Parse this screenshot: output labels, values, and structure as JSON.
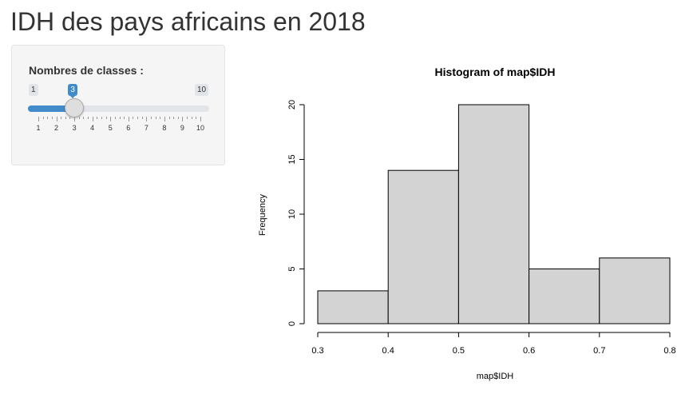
{
  "page": {
    "title": "IDH des pays africains en 2018"
  },
  "sidebar": {
    "slider": {
      "label": "Nombres de classes :",
      "min": 1,
      "max": 10,
      "value": 3,
      "min_label": "1",
      "max_label": "10",
      "value_label": "3",
      "grid_labels": [
        "1",
        "2",
        "3",
        "4",
        "5",
        "6",
        "7",
        "8",
        "9",
        "10"
      ],
      "accent_color": "#428bca"
    }
  },
  "chart_data": {
    "type": "bar",
    "title": "Histogram of map$IDH",
    "xlabel": "map$IDH",
    "ylabel": "Frequency",
    "bins": [
      [
        0.3,
        0.4
      ],
      [
        0.4,
        0.5
      ],
      [
        0.5,
        0.6
      ],
      [
        0.6,
        0.7
      ],
      [
        0.7,
        0.8
      ]
    ],
    "values": [
      3,
      14,
      20,
      5,
      6
    ],
    "xlim": [
      0.3,
      0.8
    ],
    "ylim": [
      0,
      20
    ],
    "x_ticks": [
      "0.3",
      "0.4",
      "0.5",
      "0.6",
      "0.7",
      "0.8"
    ],
    "y_ticks": [
      "0",
      "5",
      "10",
      "15",
      "20"
    ],
    "bar_color": "#d3d3d3",
    "grid": false
  }
}
